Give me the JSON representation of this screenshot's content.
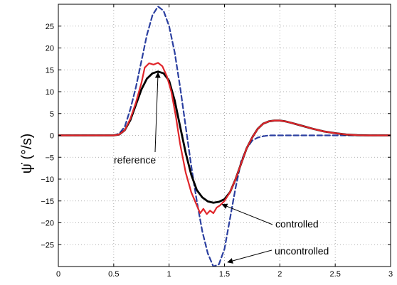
{
  "chart_data": {
    "type": "line",
    "title": "",
    "xlabel": "",
    "ylabel": "ψ̇ (°/s)",
    "xlim": [
      0,
      3
    ],
    "ylim": [
      -30,
      30
    ],
    "grid": true,
    "x_ticks": [
      0,
      0.5,
      1,
      1.5,
      2,
      2.5,
      3
    ],
    "x_tick_labels": [
      "0",
      "0.5",
      "1",
      "1.5",
      "2",
      "2.5",
      "3"
    ],
    "y_ticks": [
      25,
      20,
      15,
      10,
      5,
      0,
      -5,
      -10,
      -15,
      -20,
      -25
    ],
    "y_tick_labels": [
      "25",
      "20",
      "15",
      "10",
      "5",
      "0",
      "−5",
      "−10",
      "−15",
      "−20",
      "−25"
    ],
    "series": [
      {
        "style": "dashed",
        "color": "#2b3fa0",
        "x": [
          0,
          0.5,
          0.55,
          0.6,
          0.65,
          0.7,
          0.75,
          0.8,
          0.85,
          0.9,
          0.95,
          1.0,
          1.05,
          1.1,
          1.15,
          1.2,
          1.25,
          1.3,
          1.35,
          1.4,
          1.45,
          1.5,
          1.55,
          1.6,
          1.65,
          1.7,
          1.75,
          1.8,
          1.85,
          1.9,
          2.0,
          2.2,
          2.5,
          3.0
        ],
        "y": [
          0,
          0,
          0.4,
          2,
          6,
          11,
          17,
          23,
          27.5,
          29.5,
          28.5,
          25,
          19,
          11,
          2,
          -7,
          -15,
          -22,
          -27,
          -30,
          -29.5,
          -26,
          -19,
          -12,
          -6,
          -3,
          -1.2,
          -0.5,
          -0.2,
          0,
          0,
          0,
          0,
          0
        ]
      },
      {
        "style": "solid",
        "color": "#000000",
        "x": [
          0,
          0.5,
          0.55,
          0.6,
          0.65,
          0.7,
          0.75,
          0.8,
          0.85,
          0.9,
          0.95,
          1.0,
          1.05,
          1.1,
          1.15,
          1.2,
          1.25,
          1.3,
          1.35,
          1.4,
          1.45,
          1.5,
          1.55,
          1.6,
          1.65,
          1.7,
          1.75,
          1.8,
          1.85,
          1.9,
          1.95,
          2.0,
          2.05,
          2.1,
          2.2,
          2.3,
          2.4,
          2.5,
          2.6,
          2.7,
          2.8,
          3.0
        ],
        "y": [
          0,
          0,
          0.2,
          1.2,
          3.5,
          7,
          10.5,
          13,
          14.2,
          14.6,
          14.2,
          12.5,
          8,
          2,
          -4,
          -9,
          -12.5,
          -14.2,
          -15.1,
          -15.4,
          -15.2,
          -14.6,
          -13,
          -10,
          -6.5,
          -3,
          -0.5,
          1.5,
          2.7,
          3.2,
          3.4,
          3.4,
          3.2,
          2.9,
          2.2,
          1.5,
          0.9,
          0.5,
          0.2,
          0.05,
          0,
          0
        ]
      },
      {
        "style": "solid",
        "color": "#e0252a",
        "x": [
          0,
          0.5,
          0.55,
          0.6,
          0.65,
          0.7,
          0.75,
          0.78,
          0.82,
          0.86,
          0.9,
          0.94,
          0.98,
          1.02,
          1.06,
          1.1,
          1.15,
          1.2,
          1.25,
          1.28,
          1.31,
          1.34,
          1.37,
          1.4,
          1.43,
          1.46,
          1.5,
          1.55,
          1.6,
          1.65,
          1.7,
          1.75,
          1.8,
          1.85,
          1.9,
          1.95,
          2.0,
          2.05,
          2.1,
          2.2,
          2.3,
          2.4,
          2.5,
          2.6,
          2.7,
          2.8,
          3.0
        ],
        "y": [
          0,
          0,
          0.2,
          1.2,
          3.8,
          7.5,
          12,
          15.5,
          16.5,
          16.2,
          16.6,
          15.8,
          13.5,
          10,
          4.5,
          -2,
          -8.5,
          -13,
          -16,
          -17.8,
          -16.8,
          -18,
          -17.2,
          -17.8,
          -16.5,
          -16,
          -15,
          -13,
          -10,
          -6.5,
          -3,
          -0.5,
          1.5,
          2.7,
          3.2,
          3.4,
          3.4,
          3.2,
          2.9,
          2.2,
          1.5,
          0.9,
          0.5,
          0.2,
          0.05,
          0,
          0
        ]
      }
    ],
    "annotations": [
      {
        "text": "reference",
        "anchor": "left-middle",
        "arrow_to": [
          0.9,
          14.3
        ]
      },
      {
        "text": "controlled",
        "anchor": "right-lower",
        "arrow_to": [
          1.48,
          -15.8
        ]
      },
      {
        "text": "uncontrolled",
        "anchor": "right-bottom",
        "arrow_to": [
          1.53,
          -29
        ]
      }
    ]
  }
}
